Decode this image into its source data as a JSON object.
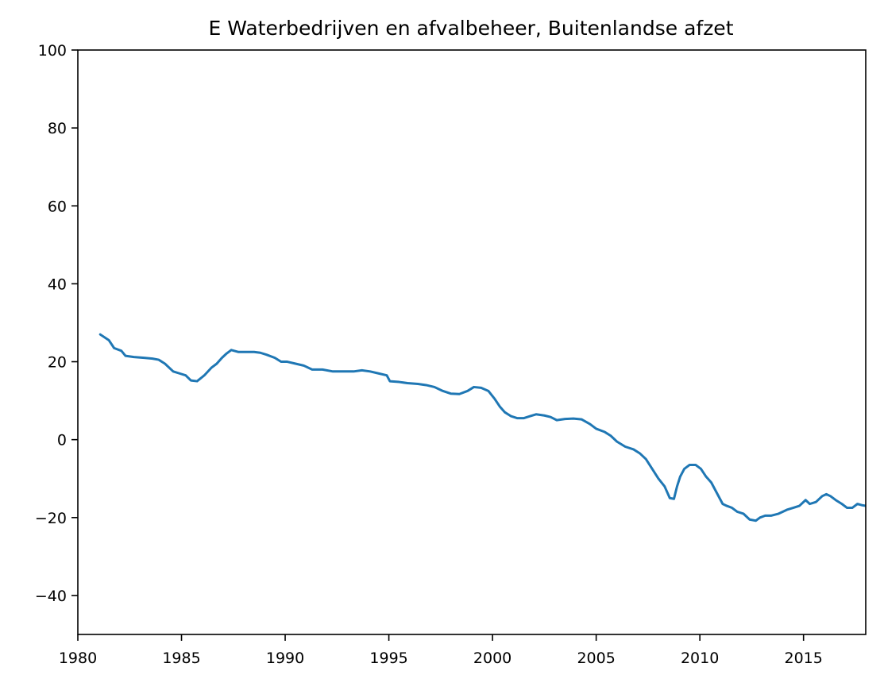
{
  "chart_data": {
    "type": "line",
    "title": "E Waterbedrijven en afvalbeheer, Buitenlandse afzet",
    "xlabel": "",
    "ylabel": "",
    "xlim": [
      1980,
      2018
    ],
    "ylim": [
      -50,
      100
    ],
    "grid": false,
    "x_ticks": [
      1980,
      1985,
      1990,
      1995,
      2000,
      2005,
      2010,
      2015
    ],
    "x_tick_labels": [
      "1980",
      "1985",
      "1990",
      "1995",
      "2000",
      "2005",
      "2010",
      "2015"
    ],
    "y_ticks": [
      -40,
      -20,
      0,
      20,
      40,
      60,
      80,
      100
    ],
    "y_tick_labels": [
      "−40",
      "−20",
      "0",
      "20",
      "40",
      "60",
      "80",
      "100"
    ],
    "line_color": "#1f77b4",
    "series": [
      {
        "x": [
          1981.08,
          1981.5,
          1981.75,
          1982.1,
          1982.3,
          1982.7,
          1983.2,
          1983.6,
          1983.9,
          1984.2,
          1984.6,
          1984.9,
          1985.2,
          1985.45,
          1985.75,
          1986.1,
          1986.45,
          1986.7,
          1986.95,
          1987.15,
          1987.4,
          1987.75,
          1988.1,
          1988.5,
          1988.8,
          1989.1,
          1989.5,
          1989.8,
          1990.1,
          1990.5,
          1990.9,
          1991.3,
          1991.8,
          1992.3,
          1992.8,
          1993.3,
          1993.7,
          1994.1,
          1994.5,
          1994.9,
          1995.05,
          1995.5,
          1995.9,
          1996.4,
          1996.8,
          1997.2,
          1997.6,
          1998.0,
          1998.4,
          1998.8,
          1999.1,
          1999.45,
          1999.8,
          2000.1,
          2000.35,
          2000.6,
          2000.9,
          2001.2,
          2001.5,
          2001.8,
          2002.1,
          2002.5,
          2002.8,
          2003.1,
          2003.5,
          2003.9,
          2004.3,
          2004.7,
          2005.0,
          2005.4,
          2005.7,
          2006.0,
          2006.4,
          2006.8,
          2007.1,
          2007.4,
          2007.7,
          2008.0,
          2008.3,
          2008.55,
          2008.75,
          2008.9,
          2009.05,
          2009.25,
          2009.5,
          2009.8,
          2010.05,
          2010.3,
          2010.55,
          2010.85,
          2011.1,
          2011.3,
          2011.55,
          2011.8,
          2012.1,
          2012.4,
          2012.7,
          2012.9,
          2013.15,
          2013.45,
          2013.8,
          2014.2,
          2014.5,
          2014.8,
          2015.1,
          2015.3,
          2015.6,
          2015.9,
          2016.1,
          2016.3,
          2016.55,
          2016.85,
          2017.1,
          2017.35,
          2017.6,
          2017.8,
          2018.0
        ],
        "y": [
          27.0,
          25.5,
          23.5,
          22.8,
          21.5,
          21.2,
          21.0,
          20.8,
          20.5,
          19.5,
          17.5,
          17.0,
          16.5,
          15.2,
          15.0,
          16.5,
          18.5,
          19.5,
          21.0,
          22.0,
          23.0,
          22.5,
          22.5,
          22.5,
          22.3,
          21.8,
          21.0,
          20.0,
          20.0,
          19.5,
          19.0,
          18.0,
          18.0,
          17.5,
          17.5,
          17.5,
          17.8,
          17.5,
          17.0,
          16.5,
          15.0,
          14.8,
          14.5,
          14.3,
          14.0,
          13.5,
          12.5,
          11.8,
          11.7,
          12.5,
          13.5,
          13.3,
          12.5,
          10.5,
          8.5,
          7.0,
          6.0,
          5.5,
          5.5,
          6.0,
          6.5,
          6.2,
          5.8,
          5.0,
          5.3,
          5.4,
          5.2,
          4.0,
          2.8,
          2.0,
          1.0,
          -0.5,
          -1.8,
          -2.5,
          -3.5,
          -5.0,
          -7.5,
          -10.0,
          -12.0,
          -15.0,
          -15.2,
          -12.0,
          -9.5,
          -7.5,
          -6.5,
          -6.5,
          -7.5,
          -9.5,
          -11.0,
          -14.0,
          -16.5,
          -17.0,
          -17.5,
          -18.5,
          -19.0,
          -20.5,
          -20.8,
          -20.0,
          -19.5,
          -19.5,
          -19.0,
          -18.0,
          -17.5,
          -17.0,
          -15.5,
          -16.5,
          -16.0,
          -14.5,
          -14.0,
          -14.5,
          -15.5,
          -16.5,
          -17.5,
          -17.5,
          -16.5,
          -16.8,
          -17.0
        ]
      }
    ]
  }
}
